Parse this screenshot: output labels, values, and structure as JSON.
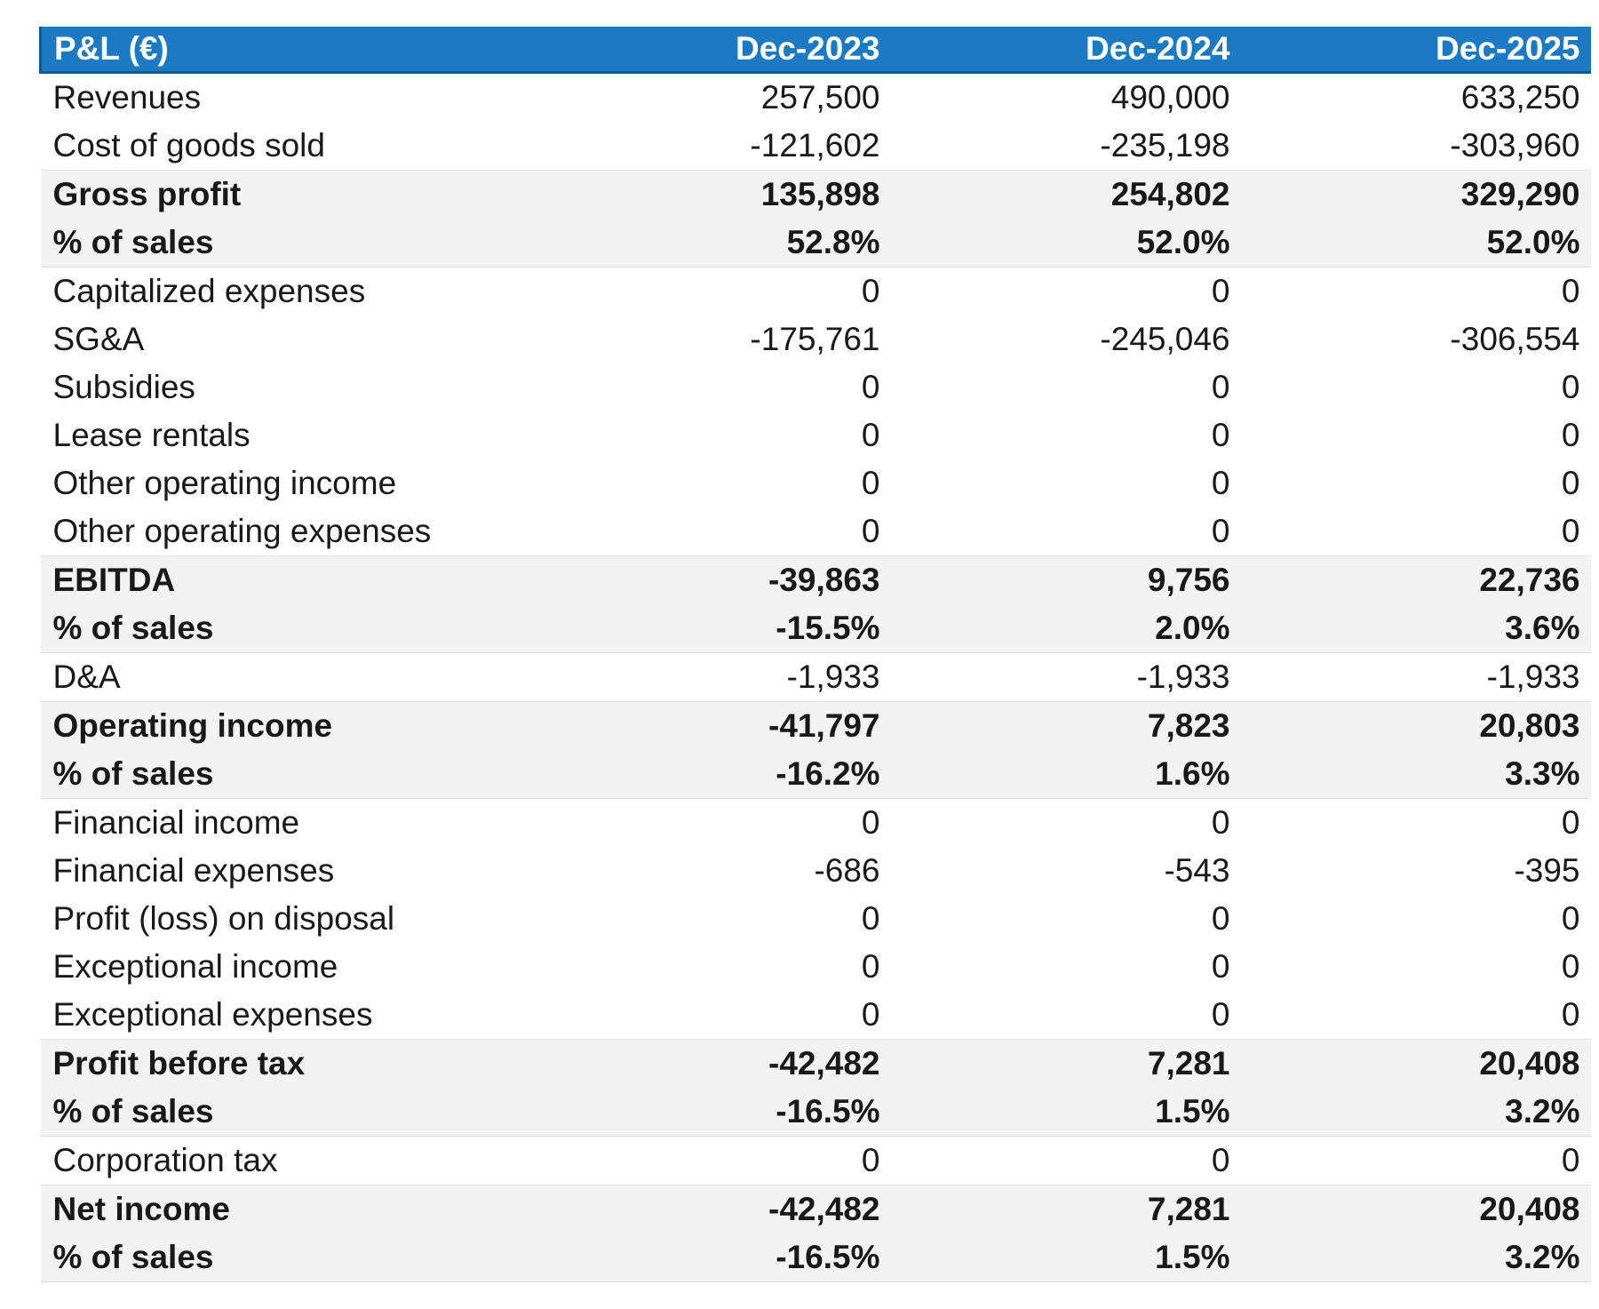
{
  "chart_data": {
    "type": "table",
    "title": "P&L (€)",
    "columns": [
      "Dec-2023",
      "Dec-2024",
      "Dec-2025"
    ],
    "rows": [
      {
        "label": "Revenues",
        "values": [
          "257,500",
          "490,000",
          "633,250"
        ],
        "style": "normal"
      },
      {
        "label": "Cost of goods sold",
        "values": [
          "-121,602",
          "-235,198",
          "-303,960"
        ],
        "style": "normal"
      },
      {
        "label": "Gross profit",
        "values": [
          "135,898",
          "254,802",
          "329,290"
        ],
        "style": "summary"
      },
      {
        "label": "% of sales",
        "values": [
          "52.8%",
          "52.0%",
          "52.0%"
        ],
        "style": "summary"
      },
      {
        "label": "Capitalized expenses",
        "values": [
          "0",
          "0",
          "0"
        ],
        "style": "normal"
      },
      {
        "label": "SG&A",
        "values": [
          "-175,761",
          "-245,046",
          "-306,554"
        ],
        "style": "normal"
      },
      {
        "label": "Subsidies",
        "values": [
          "0",
          "0",
          "0"
        ],
        "style": "normal"
      },
      {
        "label": "Lease rentals",
        "values": [
          "0",
          "0",
          "0"
        ],
        "style": "normal"
      },
      {
        "label": "Other operating income",
        "values": [
          "0",
          "0",
          "0"
        ],
        "style": "normal"
      },
      {
        "label": "Other operating expenses",
        "values": [
          "0",
          "0",
          "0"
        ],
        "style": "normal"
      },
      {
        "label": "EBITDA",
        "values": [
          "-39,863",
          "9,756",
          "22,736"
        ],
        "style": "summary"
      },
      {
        "label": "% of sales",
        "values": [
          "-15.5%",
          "2.0%",
          "3.6%"
        ],
        "style": "summary"
      },
      {
        "label": "D&A",
        "values": [
          "-1,933",
          "-1,933",
          "-1,933"
        ],
        "style": "normal"
      },
      {
        "label": "Operating income",
        "values": [
          "-41,797",
          "7,823",
          "20,803"
        ],
        "style": "summary"
      },
      {
        "label": "% of sales",
        "values": [
          "-16.2%",
          "1.6%",
          "3.3%"
        ],
        "style": "summary"
      },
      {
        "label": "Financial income",
        "values": [
          "0",
          "0",
          "0"
        ],
        "style": "normal"
      },
      {
        "label": "Financial expenses",
        "values": [
          "-686",
          "-543",
          "-395"
        ],
        "style": "normal"
      },
      {
        "label": "Profit (loss) on disposal",
        "values": [
          "0",
          "0",
          "0"
        ],
        "style": "normal"
      },
      {
        "label": "Exceptional income",
        "values": [
          "0",
          "0",
          "0"
        ],
        "style": "normal"
      },
      {
        "label": "Exceptional expenses",
        "values": [
          "0",
          "0",
          "0"
        ],
        "style": "normal"
      },
      {
        "label": "Profit before tax",
        "values": [
          "-42,482",
          "7,281",
          "20,408"
        ],
        "style": "summary"
      },
      {
        "label": "% of sales",
        "values": [
          "-16.5%",
          "1.5%",
          "3.2%"
        ],
        "style": "summary"
      },
      {
        "label": "Corporation tax",
        "values": [
          "0",
          "0",
          "0"
        ],
        "style": "normal"
      },
      {
        "label": "Net income",
        "values": [
          "-42,482",
          "7,281",
          "20,408"
        ],
        "style": "summary"
      },
      {
        "label": "% of sales",
        "values": [
          "-16.5%",
          "1.5%",
          "3.2%"
        ],
        "style": "summary"
      }
    ],
    "layout": {
      "legend": "none",
      "grid": "off",
      "value_alignment": "right",
      "summary_rows_bold": true
    }
  },
  "colors": {
    "header_bg": "#1b7ac3",
    "header_border": "#0d5a92",
    "header_text": "#ffffff",
    "summary_row_bg": "#f2f2f2",
    "normal_row_bg": "#ffffff",
    "text": "#191919",
    "page_bg": "#ffffff"
  }
}
